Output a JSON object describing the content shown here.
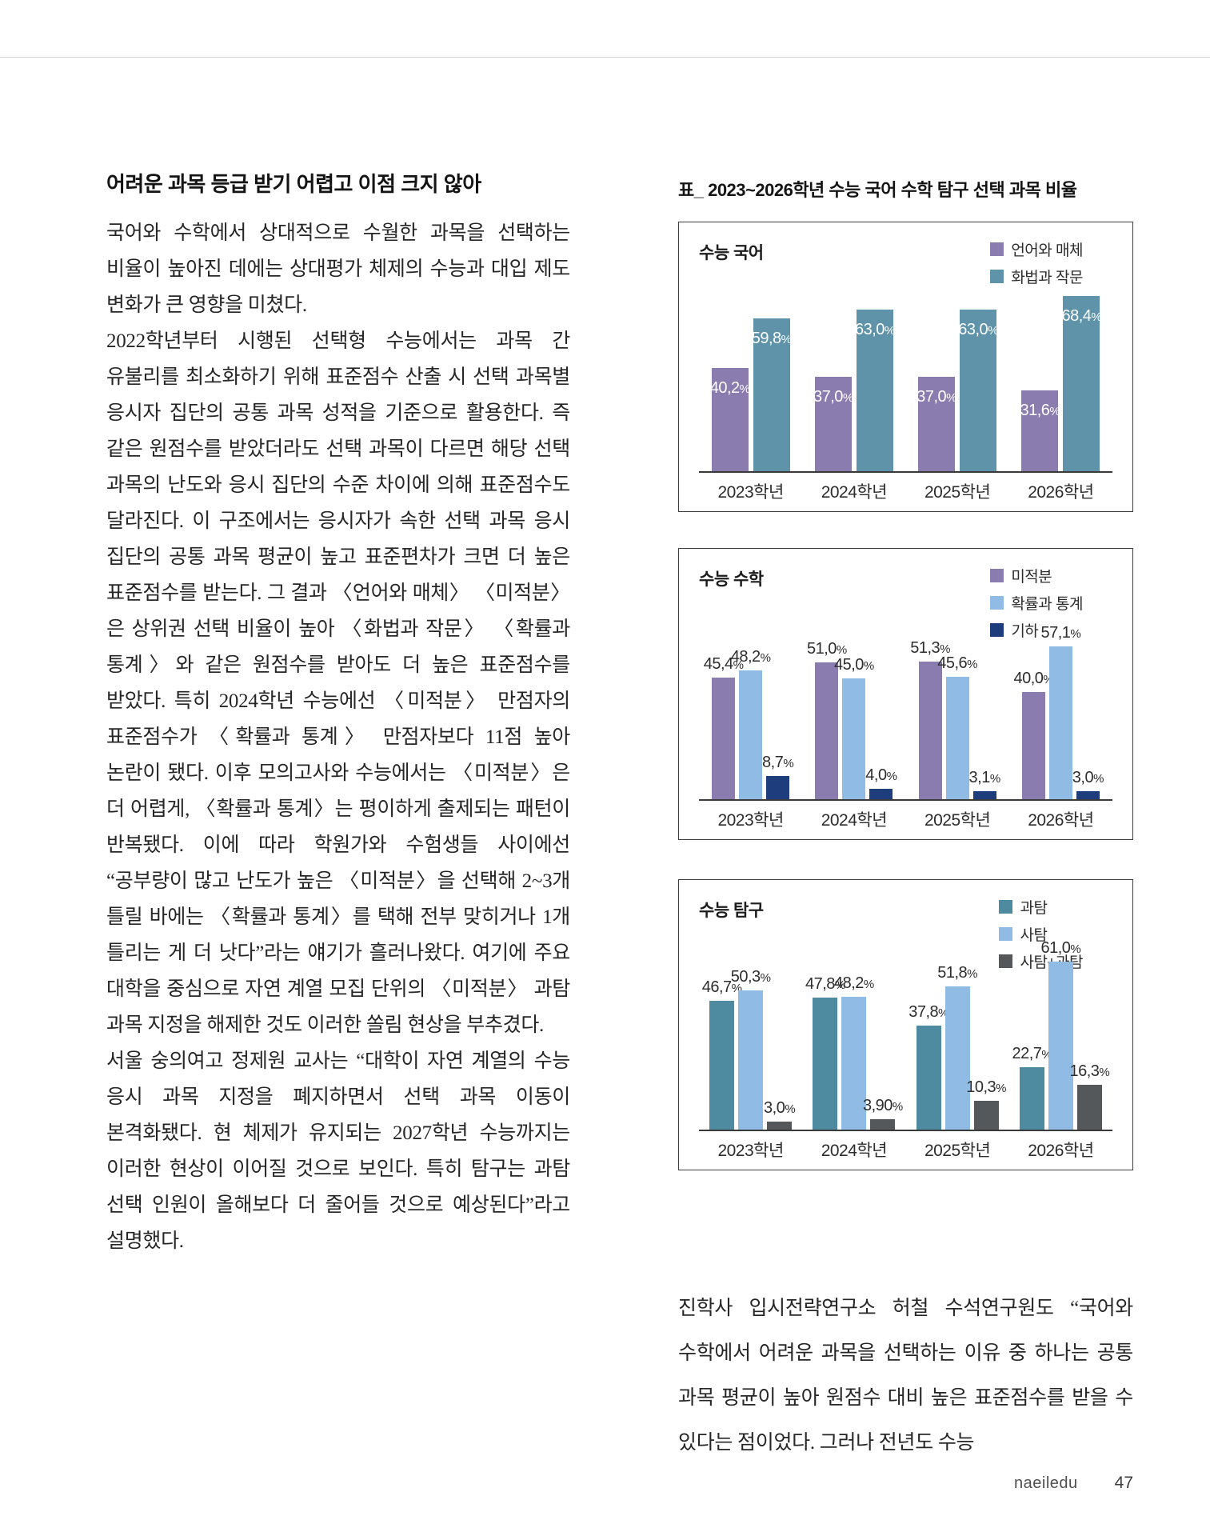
{
  "left_column": {
    "heading": "어려운 과목 등급 받기 어렵고 이점 크지 않아",
    "paragraphs": [
      "국어와 수학에서 상대적으로 수월한 과목을 선택하는 비율이 높아진 데에는 상대평가 체제의 수능과 대입 제도 변화가 큰 영향을 미쳤다.",
      "2022학년부터 시행된 선택형 수능에서는 과목 간 유불리를 최소화하기 위해 표준점수 산출 시 선택 과목별 응시자 집단의 공통 과목 성적을 기준으로 활용한다. 즉 같은 원점수를 받았더라도 선택 과목이 다르면 해당 선택 과목의 난도와 응시 집단의 수준 차이에 의해 표준점수도 달라진다. 이 구조에서는 응시자가 속한 선택 과목 응시 집단의 공통 과목 평균이 높고 표준편차가 크면 더 높은 표준점수를 받는다. 그 결과 〈언어와 매체〉 〈미적분〉은 상위권 선택 비율이 높아 〈화법과 작문〉 〈확률과 통계〉와 같은 원점수를 받아도 더 높은 표준점수를 받았다. 특히 2024학년 수능에선 〈미적분〉 만점자의 표준점수가 〈확률과 통계〉 만점자보다 11점 높아 논란이 됐다. 이후 모의고사와 수능에서는 〈미적분〉은 더 어렵게, 〈확률과 통계〉는 평이하게 출제되는 패턴이 반복됐다. 이에 따라 학원가와 수험생들 사이에선 “공부량이 많고 난도가 높은 〈미적분〉을 선택해 2~3개 틀릴 바에는 〈확률과 통계〉를 택해 전부 맞히거나 1개 틀리는 게 더 낫다”라는 얘기가 흘러나왔다. 여기에 주요 대학을 중심으로 자연 계열 모집 단위의 〈미적분〉 과탐 과목 지정을 해제한 것도 이러한 쏠림 현상을 부추겼다.",
      "서울 숭의여고 정제원 교사는 “대학이 자연 계열의 수능 응시 과목 지정을 폐지하면서 선택 과목 이동이 본격화됐다. 현 체제가 유지되는 2027학년 수능까지는 이러한 현상이 이어질 것으로 보인다. 특히 탐구는 과탐 선택 인원이 올해보다 더 줄어들 것으로 예상된다”라고 설명했다."
    ]
  },
  "right_column": {
    "section_title": "표_ 2023~2026학년 수능 국어 수학 탐구 선택 과목 비율",
    "closing_paragraph": "진학사 입시전략연구소 허철 수석연구원도 “국어와 수학에서 어려운 과목을 선택하는 이유 중 하나는 공통 과목 평균이 높아 원점수 대비 높은 표준점수를 받을 수 있다는 점이었다. 그러나 전년도 수능"
  },
  "chart_data": [
    {
      "type": "bar",
      "title": "수능 국어",
      "categories": [
        "2023학년",
        "2024학년",
        "2025학년",
        "2026학년"
      ],
      "series": [
        {
          "name": "언어와 매체",
          "color": "#8b7cb0",
          "values": [
            40.2,
            37.0,
            37.0,
            31.6
          ],
          "labels": [
            "40,2%",
            "37,0%",
            "37,0%",
            "31,6%"
          ]
        },
        {
          "name": "화법과 작문",
          "color": "#5e93a9",
          "values": [
            59.8,
            63.0,
            63.0,
            68.4
          ],
          "labels": [
            "59,8%",
            "63,0%",
            "63,0%",
            "68,4%"
          ]
        }
      ],
      "label_position": "inside",
      "legend_position": "top-right",
      "grid": false,
      "ylim": [
        0,
        70
      ],
      "unit": "%"
    },
    {
      "type": "bar",
      "title": "수능 수학",
      "categories": [
        "2023학년",
        "2024학년",
        "2025학년",
        "2026학년"
      ],
      "series": [
        {
          "name": "미적분",
          "color": "#8b7cb0",
          "values": [
            45.4,
            51.0,
            51.3,
            40.0
          ],
          "labels": [
            "45,4%",
            "51,0%",
            "51,3%",
            "40,0%"
          ]
        },
        {
          "name": "확률과 통계",
          "color": "#90bbe4",
          "values": [
            48.2,
            45.0,
            45.6,
            57.1
          ],
          "labels": [
            "48,2%",
            "45,0%",
            "45,6%",
            "57,1%"
          ]
        },
        {
          "name": "기하",
          "color": "#1e3d7c",
          "values": [
            8.7,
            4.0,
            3.1,
            3.0
          ],
          "labels": [
            "8,7%",
            "4,0%",
            "3,1%",
            "3,0%"
          ]
        }
      ],
      "label_position": "above",
      "legend_position": "top-right",
      "grid": false,
      "ylim": [
        0,
        60
      ],
      "unit": "%"
    },
    {
      "type": "bar",
      "title": "수능 탐구",
      "categories": [
        "2023학년",
        "2024학년",
        "2025학년",
        "2026학년"
      ],
      "series": [
        {
          "name": "과탐",
          "color": "#4e8ba0",
          "values": [
            46.7,
            47.8,
            37.8,
            22.7
          ],
          "labels": [
            "46,7%",
            "47,8%",
            "37,8%",
            "22,7%"
          ]
        },
        {
          "name": "사탐",
          "color": "#90bbe4",
          "values": [
            50.3,
            48.2,
            51.8,
            61.0
          ],
          "labels": [
            "50,3%",
            "48,2%",
            "51,8%",
            "61,0%"
          ]
        },
        {
          "name": "사탐+과탐",
          "color": "#54585b",
          "values": [
            3.0,
            3.9,
            10.3,
            16.3
          ],
          "labels": [
            "3,0%",
            "3,90%",
            "10,3%",
            "16,3%"
          ]
        }
      ],
      "label_position": "above",
      "legend_position": "top-right",
      "grid": false,
      "ylim": [
        0,
        65
      ],
      "unit": "%"
    }
  ],
  "footer": {
    "brand": "naeiledu",
    "page_number": "47"
  }
}
